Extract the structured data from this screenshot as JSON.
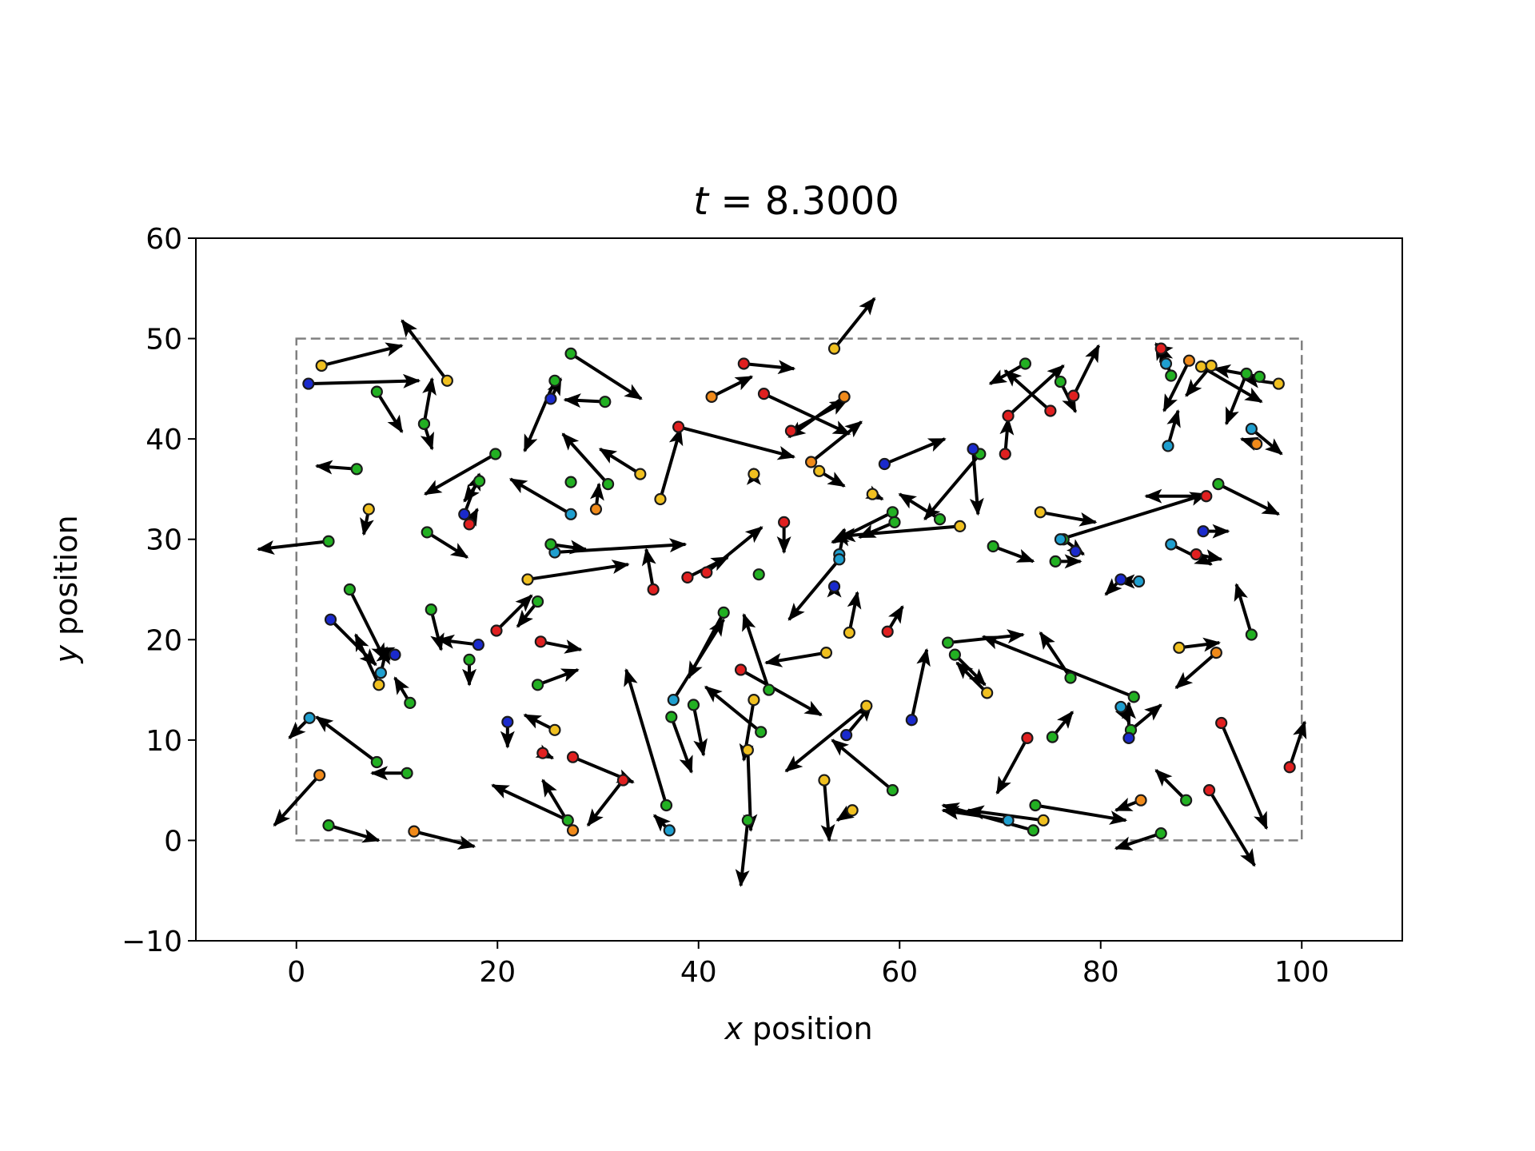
{
  "chart_data": {
    "type": "scatter",
    "title_var": "t",
    "title_eq": " = ",
    "title_value": "8.3000",
    "xlabel_var": "x",
    "xlabel_rest": " position",
    "ylabel_var": "y",
    "ylabel_rest": " position",
    "xlim": [
      -10,
      110
    ],
    "ylim": [
      -10,
      60
    ],
    "xticks": [
      0,
      20,
      40,
      60,
      80,
      100
    ],
    "yticks": [
      -10,
      0,
      10,
      20,
      30,
      40,
      50,
      60
    ],
    "xtick_labels": [
      "0",
      "20",
      "40",
      "60",
      "80",
      "100"
    ],
    "ytick_labels": [
      "−10",
      "0",
      "10",
      "20",
      "30",
      "40",
      "50",
      "60"
    ],
    "grid": false,
    "boundary": {
      "x": [
        0,
        100
      ],
      "y": [
        0,
        50
      ],
      "style": "dashed",
      "color": "#808080"
    },
    "colors": {
      "c": "#1f9fcf",
      "g": "#22b022",
      "y": "#f0c020",
      "r": "#e02020",
      "b": "#1a2acc",
      "o": "#f08a1a"
    },
    "particles": [
      {
        "x": 2.5,
        "y": 47.3,
        "dx": 8.0,
        "dy": 2.0,
        "c": "y"
      },
      {
        "x": 1.2,
        "y": 45.5,
        "dx": 11.0,
        "dy": 0.3,
        "c": "b"
      },
      {
        "x": 15.0,
        "y": 45.8,
        "dx": -4.5,
        "dy": 6.0,
        "c": "y"
      },
      {
        "x": 8.0,
        "y": 44.7,
        "dx": 2.5,
        "dy": -4.0,
        "c": "g"
      },
      {
        "x": 12.7,
        "y": 41.5,
        "dx": 0.8,
        "dy": 4.5,
        "c": "g"
      },
      {
        "x": 12.7,
        "y": 41.5,
        "dx": 0.8,
        "dy": -2.5,
        "c": "g"
      },
      {
        "x": 6.0,
        "y": 37.0,
        "dx": -4.0,
        "dy": 0.3,
        "c": "g"
      },
      {
        "x": 7.2,
        "y": 33.0,
        "dx": -0.5,
        "dy": -2.5,
        "c": "y"
      },
      {
        "x": 3.2,
        "y": 29.8,
        "dx": -7.0,
        "dy": -0.8,
        "c": "g"
      },
      {
        "x": 19.8,
        "y": 38.5,
        "dx": -7.0,
        "dy": -4.0,
        "c": "g"
      },
      {
        "x": 18.2,
        "y": 35.8,
        "dx": -1.5,
        "dy": -2.0,
        "c": "g"
      },
      {
        "x": 16.7,
        "y": 32.5,
        "dx": 1.5,
        "dy": 4.0,
        "c": "b"
      },
      {
        "x": 17.2,
        "y": 31.5,
        "dx": 0.8,
        "dy": 1.5,
        "c": "r"
      },
      {
        "x": 13.0,
        "y": 30.7,
        "dx": 4.0,
        "dy": -2.5,
        "c": "g"
      },
      {
        "x": 5.3,
        "y": 25.0,
        "dx": 3.5,
        "dy": -7.0,
        "c": "g"
      },
      {
        "x": 3.4,
        "y": 22.0,
        "dx": 4.5,
        "dy": -4.5,
        "c": "b"
      },
      {
        "x": 8.2,
        "y": 15.5,
        "dx": -2.3,
        "dy": 5.0,
        "c": "y"
      },
      {
        "x": 8.4,
        "y": 16.7,
        "dx": 0.6,
        "dy": 2.5,
        "c": "c"
      },
      {
        "x": 9.8,
        "y": 18.5,
        "dx": -1.7,
        "dy": 0.6,
        "c": "b"
      },
      {
        "x": 11.3,
        "y": 13.7,
        "dx": -1.5,
        "dy": 2.5,
        "c": "g"
      },
      {
        "x": 13.4,
        "y": 23.0,
        "dx": 1.0,
        "dy": -4.0,
        "c": "g"
      },
      {
        "x": 18.1,
        "y": 19.5,
        "dx": -4.0,
        "dy": 0.5,
        "c": "b"
      },
      {
        "x": 17.2,
        "y": 18.0,
        "dx": 0.0,
        "dy": -2.5,
        "c": "g"
      },
      {
        "x": 19.9,
        "y": 20.9,
        "dx": 3.5,
        "dy": 3.5,
        "c": "r"
      },
      {
        "x": 24.0,
        "y": 23.8,
        "dx": -2.0,
        "dy": -2.5,
        "c": "g"
      },
      {
        "x": 1.3,
        "y": 12.2,
        "dx": -2.0,
        "dy": -2.0,
        "c": "c"
      },
      {
        "x": 8.0,
        "y": 7.8,
        "dx": -6.0,
        "dy": 4.5,
        "c": "g"
      },
      {
        "x": 11.0,
        "y": 6.7,
        "dx": -3.5,
        "dy": 0.0,
        "c": "g"
      },
      {
        "x": 2.3,
        "y": 6.5,
        "dx": -4.5,
        "dy": -5.0,
        "c": "o"
      },
      {
        "x": 3.2,
        "y": 1.5,
        "dx": 5.0,
        "dy": -1.5,
        "c": "g"
      },
      {
        "x": 11.7,
        "y": 0.9,
        "dx": 6.0,
        "dy": -1.5,
        "c": "o"
      },
      {
        "x": 27.3,
        "y": 48.5,
        "dx": 7.0,
        "dy": -4.5,
        "c": "g"
      },
      {
        "x": 25.7,
        "y": 45.8,
        "dx": -3.0,
        "dy": -7.0,
        "c": "g"
      },
      {
        "x": 25.3,
        "y": 44.0,
        "dx": 1.0,
        "dy": 2.0,
        "c": "b"
      },
      {
        "x": 30.7,
        "y": 43.7,
        "dx": -4.0,
        "dy": 0.2,
        "c": "g"
      },
      {
        "x": 34.2,
        "y": 36.5,
        "dx": -4.0,
        "dy": 2.5,
        "c": "y"
      },
      {
        "x": 31.0,
        "y": 35.5,
        "dx": -4.5,
        "dy": 5.0,
        "c": "g"
      },
      {
        "x": 27.3,
        "y": 35.7,
        "dx": 0.0,
        "dy": 0.0,
        "c": "g"
      },
      {
        "x": 29.8,
        "y": 33.0,
        "dx": 0.3,
        "dy": 2.5,
        "c": "o"
      },
      {
        "x": 27.3,
        "y": 32.5,
        "dx": -6.0,
        "dy": 3.5,
        "c": "c"
      },
      {
        "x": 25.7,
        "y": 28.7,
        "dx": 13.0,
        "dy": 0.8,
        "c": "c"
      },
      {
        "x": 25.3,
        "y": 29.5,
        "dx": 3.5,
        "dy": -0.5,
        "c": "g"
      },
      {
        "x": 23.0,
        "y": 26.0,
        "dx": 10.0,
        "dy": 1.5,
        "c": "y"
      },
      {
        "x": 36.2,
        "y": 34.0,
        "dx": 2.0,
        "dy": 7.0,
        "c": "y"
      },
      {
        "x": 38.0,
        "y": 41.2,
        "dx": 11.5,
        "dy": -3.0,
        "c": "r"
      },
      {
        "x": 35.5,
        "y": 25.0,
        "dx": -0.7,
        "dy": 4.0,
        "c": "r"
      },
      {
        "x": 38.9,
        "y": 26.2,
        "dx": 4.0,
        "dy": 2.0,
        "c": "r"
      },
      {
        "x": 40.8,
        "y": 26.7,
        "dx": 5.5,
        "dy": 4.5,
        "c": "r"
      },
      {
        "x": 46.0,
        "y": 26.5,
        "dx": 0.0,
        "dy": 0.0,
        "c": "g"
      },
      {
        "x": 41.3,
        "y": 44.2,
        "dx": 4.0,
        "dy": 2.0,
        "c": "o"
      },
      {
        "x": 44.5,
        "y": 47.5,
        "dx": 5.0,
        "dy": -0.5,
        "c": "r"
      },
      {
        "x": 46.5,
        "y": 44.5,
        "dx": 8.5,
        "dy": -4.0,
        "c": "r"
      },
      {
        "x": 54.5,
        "y": 44.2,
        "dx": -5.5,
        "dy": -4.0,
        "c": "o"
      },
      {
        "x": 49.2,
        "y": 40.8,
        "dx": 5.5,
        "dy": 3.0,
        "c": "r"
      },
      {
        "x": 51.2,
        "y": 37.7,
        "dx": 5.0,
        "dy": 4.0,
        "c": "o"
      },
      {
        "x": 52.0,
        "y": 36.8,
        "dx": 2.5,
        "dy": -1.5,
        "c": "y"
      },
      {
        "x": 45.5,
        "y": 36.5,
        "dx": 0.0,
        "dy": 0.5,
        "c": "y"
      },
      {
        "x": 53.5,
        "y": 49.0,
        "dx": 4.0,
        "dy": 5.0,
        "c": "y"
      },
      {
        "x": 48.5,
        "y": 31.7,
        "dx": 0.0,
        "dy": -3.0,
        "c": "r"
      },
      {
        "x": 58.5,
        "y": 37.5,
        "dx": 6.0,
        "dy": 2.5,
        "c": "b"
      },
      {
        "x": 57.3,
        "y": 34.5,
        "dx": 1.0,
        "dy": -0.5,
        "c": "y"
      },
      {
        "x": 59.3,
        "y": 32.7,
        "dx": -6.0,
        "dy": -3.0,
        "c": "g"
      },
      {
        "x": 59.5,
        "y": 31.7,
        "dx": -3.5,
        "dy": -1.5,
        "c": "g"
      },
      {
        "x": 64.0,
        "y": 32.0,
        "dx": -4.0,
        "dy": 2.5,
        "c": "g"
      },
      {
        "x": 66.0,
        "y": 31.3,
        "dx": -12.0,
        "dy": -1.0,
        "c": "y"
      },
      {
        "x": 54.0,
        "y": 28.5,
        "dx": 0.5,
        "dy": 2.5,
        "c": "c"
      },
      {
        "x": 54.0,
        "y": 28.0,
        "dx": -5.0,
        "dy": -6.0,
        "c": "c"
      },
      {
        "x": 53.5,
        "y": 25.3,
        "dx": 0.0,
        "dy": 0.5,
        "c": "b"
      },
      {
        "x": 55.0,
        "y": 20.7,
        "dx": 0.8,
        "dy": 4.0,
        "c": "y"
      },
      {
        "x": 58.8,
        "y": 20.8,
        "dx": 1.5,
        "dy": 2.5,
        "c": "r"
      },
      {
        "x": 52.7,
        "y": 18.7,
        "dx": -6.0,
        "dy": -1.0,
        "c": "y"
      },
      {
        "x": 61.2,
        "y": 12.0,
        "dx": 1.5,
        "dy": 7.0,
        "c": "b"
      },
      {
        "x": 56.7,
        "y": 13.4,
        "dx": -8.0,
        "dy": -6.5,
        "c": "y"
      },
      {
        "x": 54.7,
        "y": 10.5,
        "dx": 2.5,
        "dy": 3.0,
        "c": "b"
      },
      {
        "x": 59.3,
        "y": 5.0,
        "dx": -6.0,
        "dy": 5.0,
        "c": "g"
      },
      {
        "x": 52.5,
        "y": 6.0,
        "dx": 0.5,
        "dy": -6.0,
        "c": "y"
      },
      {
        "x": 55.3,
        "y": 3.0,
        "dx": -1.5,
        "dy": -1.0,
        "c": "y"
      },
      {
        "x": 36.8,
        "y": 3.5,
        "dx": -4.0,
        "dy": 13.5,
        "c": "g"
      },
      {
        "x": 37.1,
        "y": 1.0,
        "dx": -1.5,
        "dy": 1.5,
        "c": "c"
      },
      {
        "x": 37.5,
        "y": 14.0,
        "dx": 5.0,
        "dy": 8.0,
        "c": "c"
      },
      {
        "x": 42.5,
        "y": 22.7,
        "dx": -3.5,
        "dy": -6.5,
        "c": "g"
      },
      {
        "x": 37.3,
        "y": 12.3,
        "dx": 2.0,
        "dy": -5.5,
        "c": "g"
      },
      {
        "x": 39.5,
        "y": 13.5,
        "dx": 1.0,
        "dy": -5.0,
        "c": "g"
      },
      {
        "x": 44.2,
        "y": 17.0,
        "dx": 8.0,
        "dy": -4.5,
        "c": "r"
      },
      {
        "x": 47.0,
        "y": 15.0,
        "dx": -2.5,
        "dy": 7.5,
        "c": "g"
      },
      {
        "x": 46.2,
        "y": 10.8,
        "dx": -5.5,
        "dy": 4.5,
        "c": "g"
      },
      {
        "x": 45.5,
        "y": 14.0,
        "dx": -1.0,
        "dy": -6.0,
        "c": "y"
      },
      {
        "x": 44.9,
        "y": 9.0,
        "dx": 0.3,
        "dy": -8.0,
        "c": "y"
      },
      {
        "x": 44.9,
        "y": 2.0,
        "dx": -0.7,
        "dy": -6.5,
        "c": "g"
      },
      {
        "x": 21.0,
        "y": 11.8,
        "dx": 0.0,
        "dy": -2.5,
        "c": "b"
      },
      {
        "x": 25.7,
        "y": 11.0,
        "dx": -3.0,
        "dy": 1.5,
        "c": "y"
      },
      {
        "x": 24.3,
        "y": 19.8,
        "dx": 4.0,
        "dy": -0.8,
        "c": "r"
      },
      {
        "x": 24.0,
        "y": 15.5,
        "dx": 4.0,
        "dy": 1.5,
        "c": "g"
      },
      {
        "x": 24.5,
        "y": 8.7,
        "dx": 1.0,
        "dy": -0.5,
        "c": "r"
      },
      {
        "x": 27.5,
        "y": 8.3,
        "dx": 6.0,
        "dy": -2.5,
        "c": "r"
      },
      {
        "x": 32.5,
        "y": 6.0,
        "dx": -3.5,
        "dy": -4.5,
        "c": "r"
      },
      {
        "x": 27.0,
        "y": 2.0,
        "dx": -7.5,
        "dy": 3.5,
        "c": "g"
      },
      {
        "x": 27.5,
        "y": 1.0,
        "dx": -3.0,
        "dy": 5.0,
        "c": "o"
      },
      {
        "x": 68.0,
        "y": 38.5,
        "dx": -5.5,
        "dy": -6.5,
        "c": "g"
      },
      {
        "x": 67.3,
        "y": 39.0,
        "dx": 0.5,
        "dy": -6.5,
        "c": "b"
      },
      {
        "x": 70.5,
        "y": 38.5,
        "dx": 0.3,
        "dy": 3.5,
        "c": "r"
      },
      {
        "x": 70.8,
        "y": 42.3,
        "dx": 5.5,
        "dy": 5.0,
        "c": "r"
      },
      {
        "x": 72.5,
        "y": 47.5,
        "dx": -3.5,
        "dy": -2.0,
        "c": "g"
      },
      {
        "x": 75.0,
        "y": 42.8,
        "dx": -4.5,
        "dy": 4.0,
        "c": "r"
      },
      {
        "x": 76.0,
        "y": 45.7,
        "dx": 1.5,
        "dy": -3.0,
        "c": "g"
      },
      {
        "x": 77.3,
        "y": 44.3,
        "dx": 2.5,
        "dy": 5.0,
        "c": "r"
      },
      {
        "x": 69.3,
        "y": 29.3,
        "dx": 4.0,
        "dy": -1.5,
        "c": "g"
      },
      {
        "x": 74.0,
        "y": 32.7,
        "dx": 5.5,
        "dy": -1.0,
        "c": "y"
      },
      {
        "x": 75.5,
        "y": 27.8,
        "dx": 2.5,
        "dy": 0.0,
        "c": "g"
      },
      {
        "x": 76.3,
        "y": 30.0,
        "dx": 2.0,
        "dy": -1.5,
        "c": "g"
      },
      {
        "x": 77.5,
        "y": 28.8,
        "dx": 0.0,
        "dy": 0.0,
        "c": "b"
      },
      {
        "x": 76.0,
        "y": 30.0,
        "dx": 14.5,
        "dy": 4.5,
        "c": "c"
      },
      {
        "x": 90.5,
        "y": 34.3,
        "dx": -6.0,
        "dy": 0.0,
        "c": "r"
      },
      {
        "x": 91.7,
        "y": 35.5,
        "dx": 6.0,
        "dy": -3.0,
        "c": "g"
      },
      {
        "x": 90.2,
        "y": 30.8,
        "dx": 2.5,
        "dy": 0.0,
        "c": "b"
      },
      {
        "x": 87.0,
        "y": 29.5,
        "dx": 4.0,
        "dy": -2.0,
        "c": "c"
      },
      {
        "x": 89.5,
        "y": 28.5,
        "dx": 2.5,
        "dy": -0.5,
        "c": "r"
      },
      {
        "x": 82.0,
        "y": 26.0,
        "dx": -1.5,
        "dy": -1.5,
        "c": "b"
      },
      {
        "x": 83.8,
        "y": 25.8,
        "dx": -2.0,
        "dy": 0.0,
        "c": "c"
      },
      {
        "x": 95.0,
        "y": 20.5,
        "dx": -1.5,
        "dy": 5.0,
        "c": "g"
      },
      {
        "x": 91.5,
        "y": 18.7,
        "dx": -4.0,
        "dy": -3.5,
        "c": "o"
      },
      {
        "x": 87.8,
        "y": 19.2,
        "dx": 4.0,
        "dy": 0.5,
        "c": "y"
      },
      {
        "x": 64.8,
        "y": 19.7,
        "dx": 7.5,
        "dy": 0.8,
        "c": "g"
      },
      {
        "x": 65.5,
        "y": 18.5,
        "dx": 3.0,
        "dy": -3.0,
        "c": "g"
      },
      {
        "x": 68.7,
        "y": 14.7,
        "dx": -3.0,
        "dy": 3.0,
        "c": "y"
      },
      {
        "x": 77.0,
        "y": 16.2,
        "dx": -3.0,
        "dy": 4.5,
        "c": "g"
      },
      {
        "x": 83.3,
        "y": 14.3,
        "dx": -15.0,
        "dy": 6.0,
        "c": "g"
      },
      {
        "x": 82.0,
        "y": 13.3,
        "dx": 0.8,
        "dy": -1.5,
        "c": "c"
      },
      {
        "x": 83.0,
        "y": 11.0,
        "dx": 3.0,
        "dy": 2.5,
        "c": "g"
      },
      {
        "x": 82.8,
        "y": 10.2,
        "dx": 0.0,
        "dy": 3.5,
        "c": "b"
      },
      {
        "x": 72.7,
        "y": 10.2,
        "dx": -3.0,
        "dy": -5.5,
        "c": "r"
      },
      {
        "x": 75.2,
        "y": 10.3,
        "dx": 2.0,
        "dy": 2.5,
        "c": "g"
      },
      {
        "x": 70.8,
        "y": 2.0,
        "dx": -6.5,
        "dy": 1.0,
        "c": "c"
      },
      {
        "x": 73.3,
        "y": 1.0,
        "dx": -9.0,
        "dy": 2.5,
        "c": "g"
      },
      {
        "x": 74.3,
        "y": 2.0,
        "dx": -7.5,
        "dy": 1.0,
        "c": "y"
      },
      {
        "x": 73.5,
        "y": 3.5,
        "dx": 9.0,
        "dy": -1.5,
        "c": "g"
      },
      {
        "x": 84.0,
        "y": 4.0,
        "dx": -2.5,
        "dy": -1.0,
        "c": "o"
      },
      {
        "x": 88.5,
        "y": 4.0,
        "dx": -3.0,
        "dy": 3.0,
        "c": "g"
      },
      {
        "x": 86.0,
        "y": 0.7,
        "dx": -4.5,
        "dy": -1.5,
        "c": "g"
      },
      {
        "x": 92.0,
        "y": 11.7,
        "dx": 4.5,
        "dy": -10.5,
        "c": "r"
      },
      {
        "x": 90.8,
        "y": 5.0,
        "dx": 4.5,
        "dy": -7.5,
        "c": "r"
      },
      {
        "x": 98.8,
        "y": 7.3,
        "dx": 1.5,
        "dy": 4.5,
        "c": "r"
      },
      {
        "x": 86.0,
        "y": 49.0,
        "dx": -0.5,
        "dy": 0.3,
        "c": "r"
      },
      {
        "x": 86.5,
        "y": 47.5,
        "dx": -1.0,
        "dy": 2.0,
        "c": "c"
      },
      {
        "x": 87.0,
        "y": 46.3,
        "dx": -1.0,
        "dy": 3.0,
        "c": "g"
      },
      {
        "x": 88.8,
        "y": 47.8,
        "dx": -2.5,
        "dy": -5.0,
        "c": "o"
      },
      {
        "x": 90.0,
        "y": 47.2,
        "dx": 6.0,
        "dy": -3.5,
        "c": "y"
      },
      {
        "x": 91.0,
        "y": 47.3,
        "dx": -2.5,
        "dy": -3.0,
        "c": "y"
      },
      {
        "x": 95.8,
        "y": 46.2,
        "dx": -4.5,
        "dy": 0.8,
        "c": "g"
      },
      {
        "x": 97.7,
        "y": 45.5,
        "dx": -3.5,
        "dy": 0.5,
        "c": "y"
      },
      {
        "x": 94.5,
        "y": 46.5,
        "dx": -2.0,
        "dy": -5.0,
        "c": "g"
      },
      {
        "x": 86.7,
        "y": 39.3,
        "dx": 1.0,
        "dy": 3.5,
        "c": "c"
      },
      {
        "x": 95.5,
        "y": 39.5,
        "dx": -1.5,
        "dy": 0.5,
        "c": "o"
      },
      {
        "x": 95.0,
        "y": 41.0,
        "dx": 3.0,
        "dy": -2.5,
        "c": "c"
      }
    ]
  }
}
